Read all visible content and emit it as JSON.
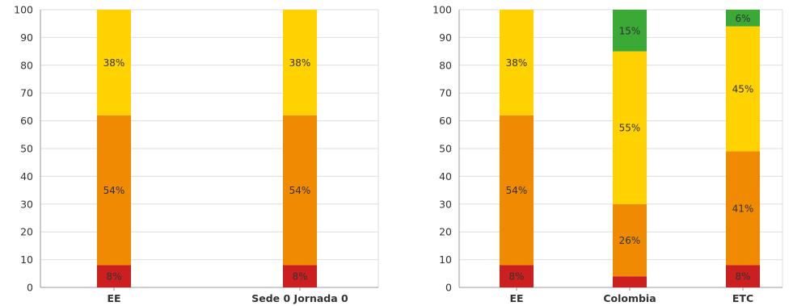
{
  "colors": {
    "red": "#cc1f1f",
    "orange": "#f08a00",
    "yellow": "#ffd200",
    "green": "#3aa935",
    "grid": "#dddddd",
    "axis": "#999999",
    "tick_text": "#333333",
    "label_text": "#333333"
  },
  "chart_data": [
    {
      "type": "bar",
      "stacked": true,
      "ylim": [
        0,
        100
      ],
      "yticks": [
        "0",
        "10",
        "20",
        "30",
        "40",
        "50",
        "60",
        "70",
        "80",
        "90",
        "100"
      ],
      "grid": true,
      "categories": [
        "EE",
        "Sede 0 Jornada 0"
      ],
      "series": [
        {
          "color": "red",
          "values": [
            8,
            8
          ],
          "labels": [
            "8%",
            "8%"
          ]
        },
        {
          "color": "orange",
          "values": [
            54,
            54
          ],
          "labels": [
            "54%",
            "54%"
          ]
        },
        {
          "color": "yellow",
          "values": [
            38,
            38
          ],
          "labels": [
            "38%",
            "38%"
          ]
        },
        {
          "color": "green",
          "values": [
            0,
            0
          ],
          "labels": [
            "",
            ""
          ]
        }
      ]
    },
    {
      "type": "bar",
      "stacked": true,
      "ylim": [
        0,
        100
      ],
      "yticks": [
        "0",
        "10",
        "20",
        "30",
        "40",
        "50",
        "60",
        "70",
        "80",
        "90",
        "100"
      ],
      "grid": true,
      "categories": [
        "EE",
        "Colombia",
        "ETC"
      ],
      "series": [
        {
          "color": "red",
          "values": [
            8,
            4,
            8
          ],
          "labels": [
            "8%",
            "",
            "8%"
          ]
        },
        {
          "color": "orange",
          "values": [
            54,
            26,
            41
          ],
          "labels": [
            "54%",
            "26%",
            "41%"
          ]
        },
        {
          "color": "yellow",
          "values": [
            38,
            55,
            45
          ],
          "labels": [
            "38%",
            "55%",
            "45%"
          ]
        },
        {
          "color": "green",
          "values": [
            0,
            15,
            6
          ],
          "labels": [
            "",
            "15%",
            "6%"
          ]
        }
      ]
    }
  ]
}
